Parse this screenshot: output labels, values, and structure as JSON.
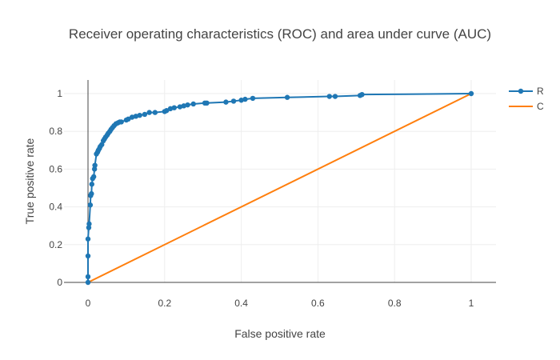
{
  "chart_data": {
    "type": "line",
    "title": "Receiver operating characteristics (ROC) and area under curve (AUC)",
    "xlabel": "False positive rate",
    "ylabel": "True positive rate",
    "xlim": [
      0,
      1
    ],
    "ylim": [
      0,
      1
    ],
    "x_ticks": [
      0,
      0.2,
      0.4,
      0.6,
      0.8,
      1
    ],
    "y_ticks": [
      0,
      0.2,
      0.4,
      0.6,
      0.8,
      1
    ],
    "x_tick_labels": [
      "0",
      "0.2",
      "0.4",
      "0.6",
      "0.8",
      "1"
    ],
    "y_tick_labels": [
      "0",
      "0.2",
      "0.4",
      "0.6",
      "0.8",
      "1"
    ],
    "grid": true,
    "legend_position": "top-right",
    "series": [
      {
        "name": "R",
        "color": "#1f77b4",
        "mode": "lines+markers",
        "x": [
          0,
          0,
          0,
          0,
          0.002,
          0.003,
          0.006,
          0.007,
          0.009,
          0.01,
          0.012,
          0.015,
          0.017,
          0.018,
          0.022,
          0.025,
          0.027,
          0.03,
          0.032,
          0.036,
          0.04,
          0.043,
          0.046,
          0.05,
          0.053,
          0.057,
          0.06,
          0.064,
          0.068,
          0.073,
          0.078,
          0.083,
          0.087,
          0.1,
          0.105,
          0.115,
          0.125,
          0.135,
          0.148,
          0.16,
          0.175,
          0.2,
          0.205,
          0.215,
          0.225,
          0.24,
          0.25,
          0.26,
          0.275,
          0.305,
          0.31,
          0.36,
          0.38,
          0.4,
          0.41,
          0.43,
          0.52,
          0.63,
          0.645,
          0.71,
          0.715,
          1.0
        ],
        "y": [
          0,
          0.03,
          0.14,
          0.23,
          0.29,
          0.31,
          0.41,
          0.46,
          0.47,
          0.52,
          0.55,
          0.56,
          0.6,
          0.62,
          0.68,
          0.69,
          0.7,
          0.71,
          0.72,
          0.73,
          0.75,
          0.76,
          0.77,
          0.78,
          0.79,
          0.8,
          0.81,
          0.82,
          0.83,
          0.84,
          0.845,
          0.85,
          0.85,
          0.86,
          0.865,
          0.875,
          0.88,
          0.885,
          0.89,
          0.9,
          0.9,
          0.905,
          0.91,
          0.92,
          0.925,
          0.93,
          0.935,
          0.94,
          0.945,
          0.95,
          0.95,
          0.955,
          0.96,
          0.965,
          0.97,
          0.975,
          0.98,
          0.985,
          0.985,
          0.99,
          0.995,
          1.0
        ]
      },
      {
        "name": "C",
        "color": "#ff7f0e",
        "mode": "lines",
        "x": [
          0,
          1
        ],
        "y": [
          0,
          1
        ]
      }
    ]
  }
}
